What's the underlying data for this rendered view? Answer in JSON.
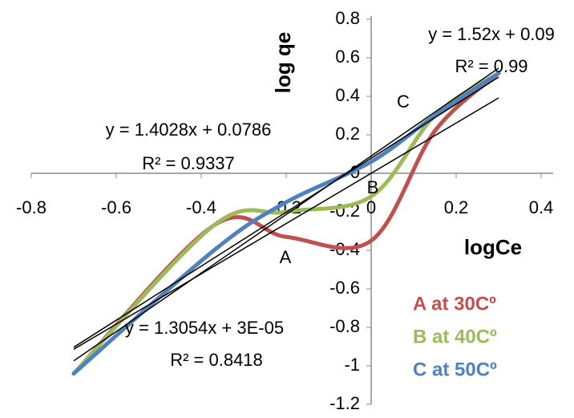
{
  "chart_data": {
    "type": "line",
    "x_label": "logCe",
    "y_label": "log qe",
    "x": [
      -0.7,
      -0.37,
      -0.2,
      0,
      0.15,
      0.3
    ],
    "series": [
      {
        "name": "A at 30Cº",
        "color": "#c0504d",
        "values": [
          -1.04,
          -0.27,
          -0.33,
          -0.35,
          0.22,
          0.52
        ],
        "annotation": "A",
        "trendline": {
          "equation": "y = 1.3054x + 3E-05",
          "r_squared": "R² = 0.8418",
          "slope": 1.3054,
          "intercept": 3e-05
        }
      },
      {
        "name": "B at 40Cº",
        "color": "#9bbb59",
        "values": [
          -1.04,
          -0.27,
          -0.2,
          -0.12,
          0.3,
          0.52
        ],
        "annotation": "B",
        "trendline": {
          "equation": "y = 1.4028x + 0.0786",
          "r_squared": "R² = 0.9337",
          "slope": 1.4028,
          "intercept": 0.0786
        }
      },
      {
        "name": "C at 50Cº",
        "color": "#4f81bd",
        "values": [
          -1.04,
          -0.4,
          -0.15,
          0.06,
          0.3,
          0.52
        ],
        "annotation": "C",
        "trendline": {
          "equation": "y = 1.52x + 0.09",
          "r_squared": "R² = 0.99",
          "slope": 1.52,
          "intercept": 0.09
        }
      }
    ],
    "xlim": [
      -0.8,
      0.4
    ],
    "xticks": [
      -0.8,
      -0.6,
      -0.4,
      -0.2,
      0,
      0.2,
      0.4
    ],
    "ylim": [
      -1.2,
      0.8
    ],
    "yticks": [
      -1.2,
      -1,
      -0.8,
      -0.6,
      -0.4,
      -0.2,
      0,
      0.2,
      0.4,
      0.6,
      0.8
    ],
    "trendline_range": [
      -0.7,
      0.3
    ]
  }
}
